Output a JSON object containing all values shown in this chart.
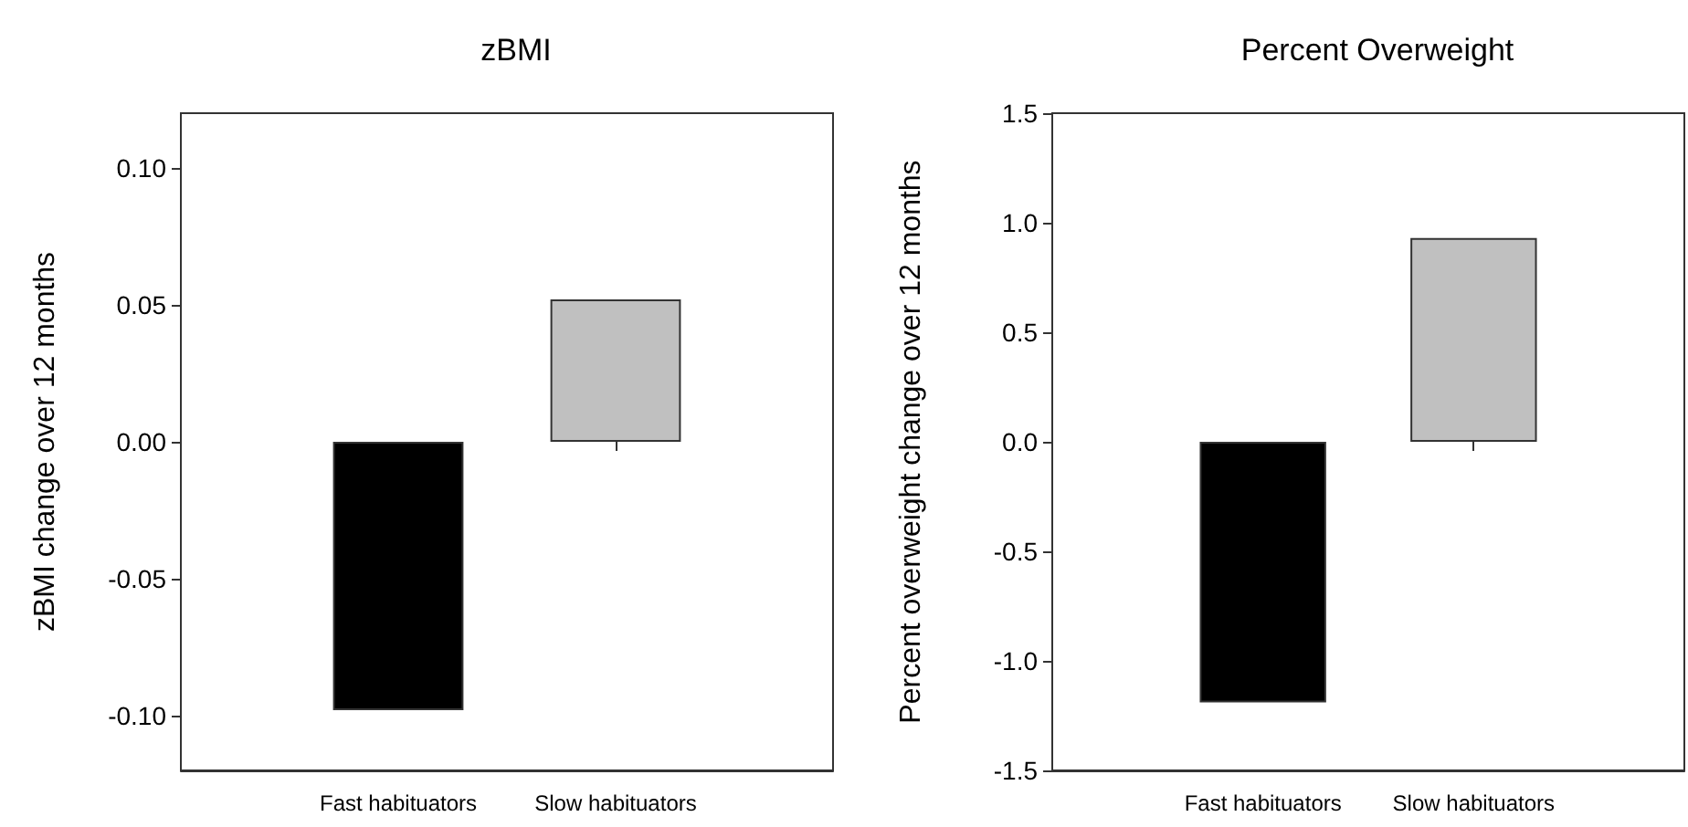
{
  "chart_data": [
    {
      "type": "bar",
      "title": "zBMI",
      "ylabel": "zBMI change over 12 months",
      "categories": [
        "Fast habituators",
        "Slow habituators"
      ],
      "values": [
        -0.098,
        0.052
      ],
      "colors": [
        "#000000",
        "#c0c0c0"
      ],
      "ylim": [
        -0.12,
        0.12
      ],
      "yticks": [
        {
          "value": -0.1,
          "label": "-0.10"
        },
        {
          "value": -0.05,
          "label": "-0.05"
        },
        {
          "value": 0,
          "label": "0.00"
        },
        {
          "value": 0.05,
          "label": "0.05"
        },
        {
          "value": 0.1,
          "label": "0.10"
        }
      ]
    },
    {
      "type": "bar",
      "title": "Percent Overweight",
      "ylabel": "Percent overweight change over 12 months",
      "categories": [
        "Fast habituators",
        "Slow habituators"
      ],
      "values": [
        -1.19,
        0.93
      ],
      "colors": [
        "#000000",
        "#c0c0c0"
      ],
      "ylim": [
        -1.5,
        1.5
      ],
      "yticks": [
        -1.5,
        {
          "value": -1,
          "label": "-1.0"
        },
        -0.5,
        {
          "value": 0,
          "label": "0.0"
        },
        0.5,
        {
          "value": 1,
          "label": "1.0"
        },
        1.5
      ]
    }
  ]
}
